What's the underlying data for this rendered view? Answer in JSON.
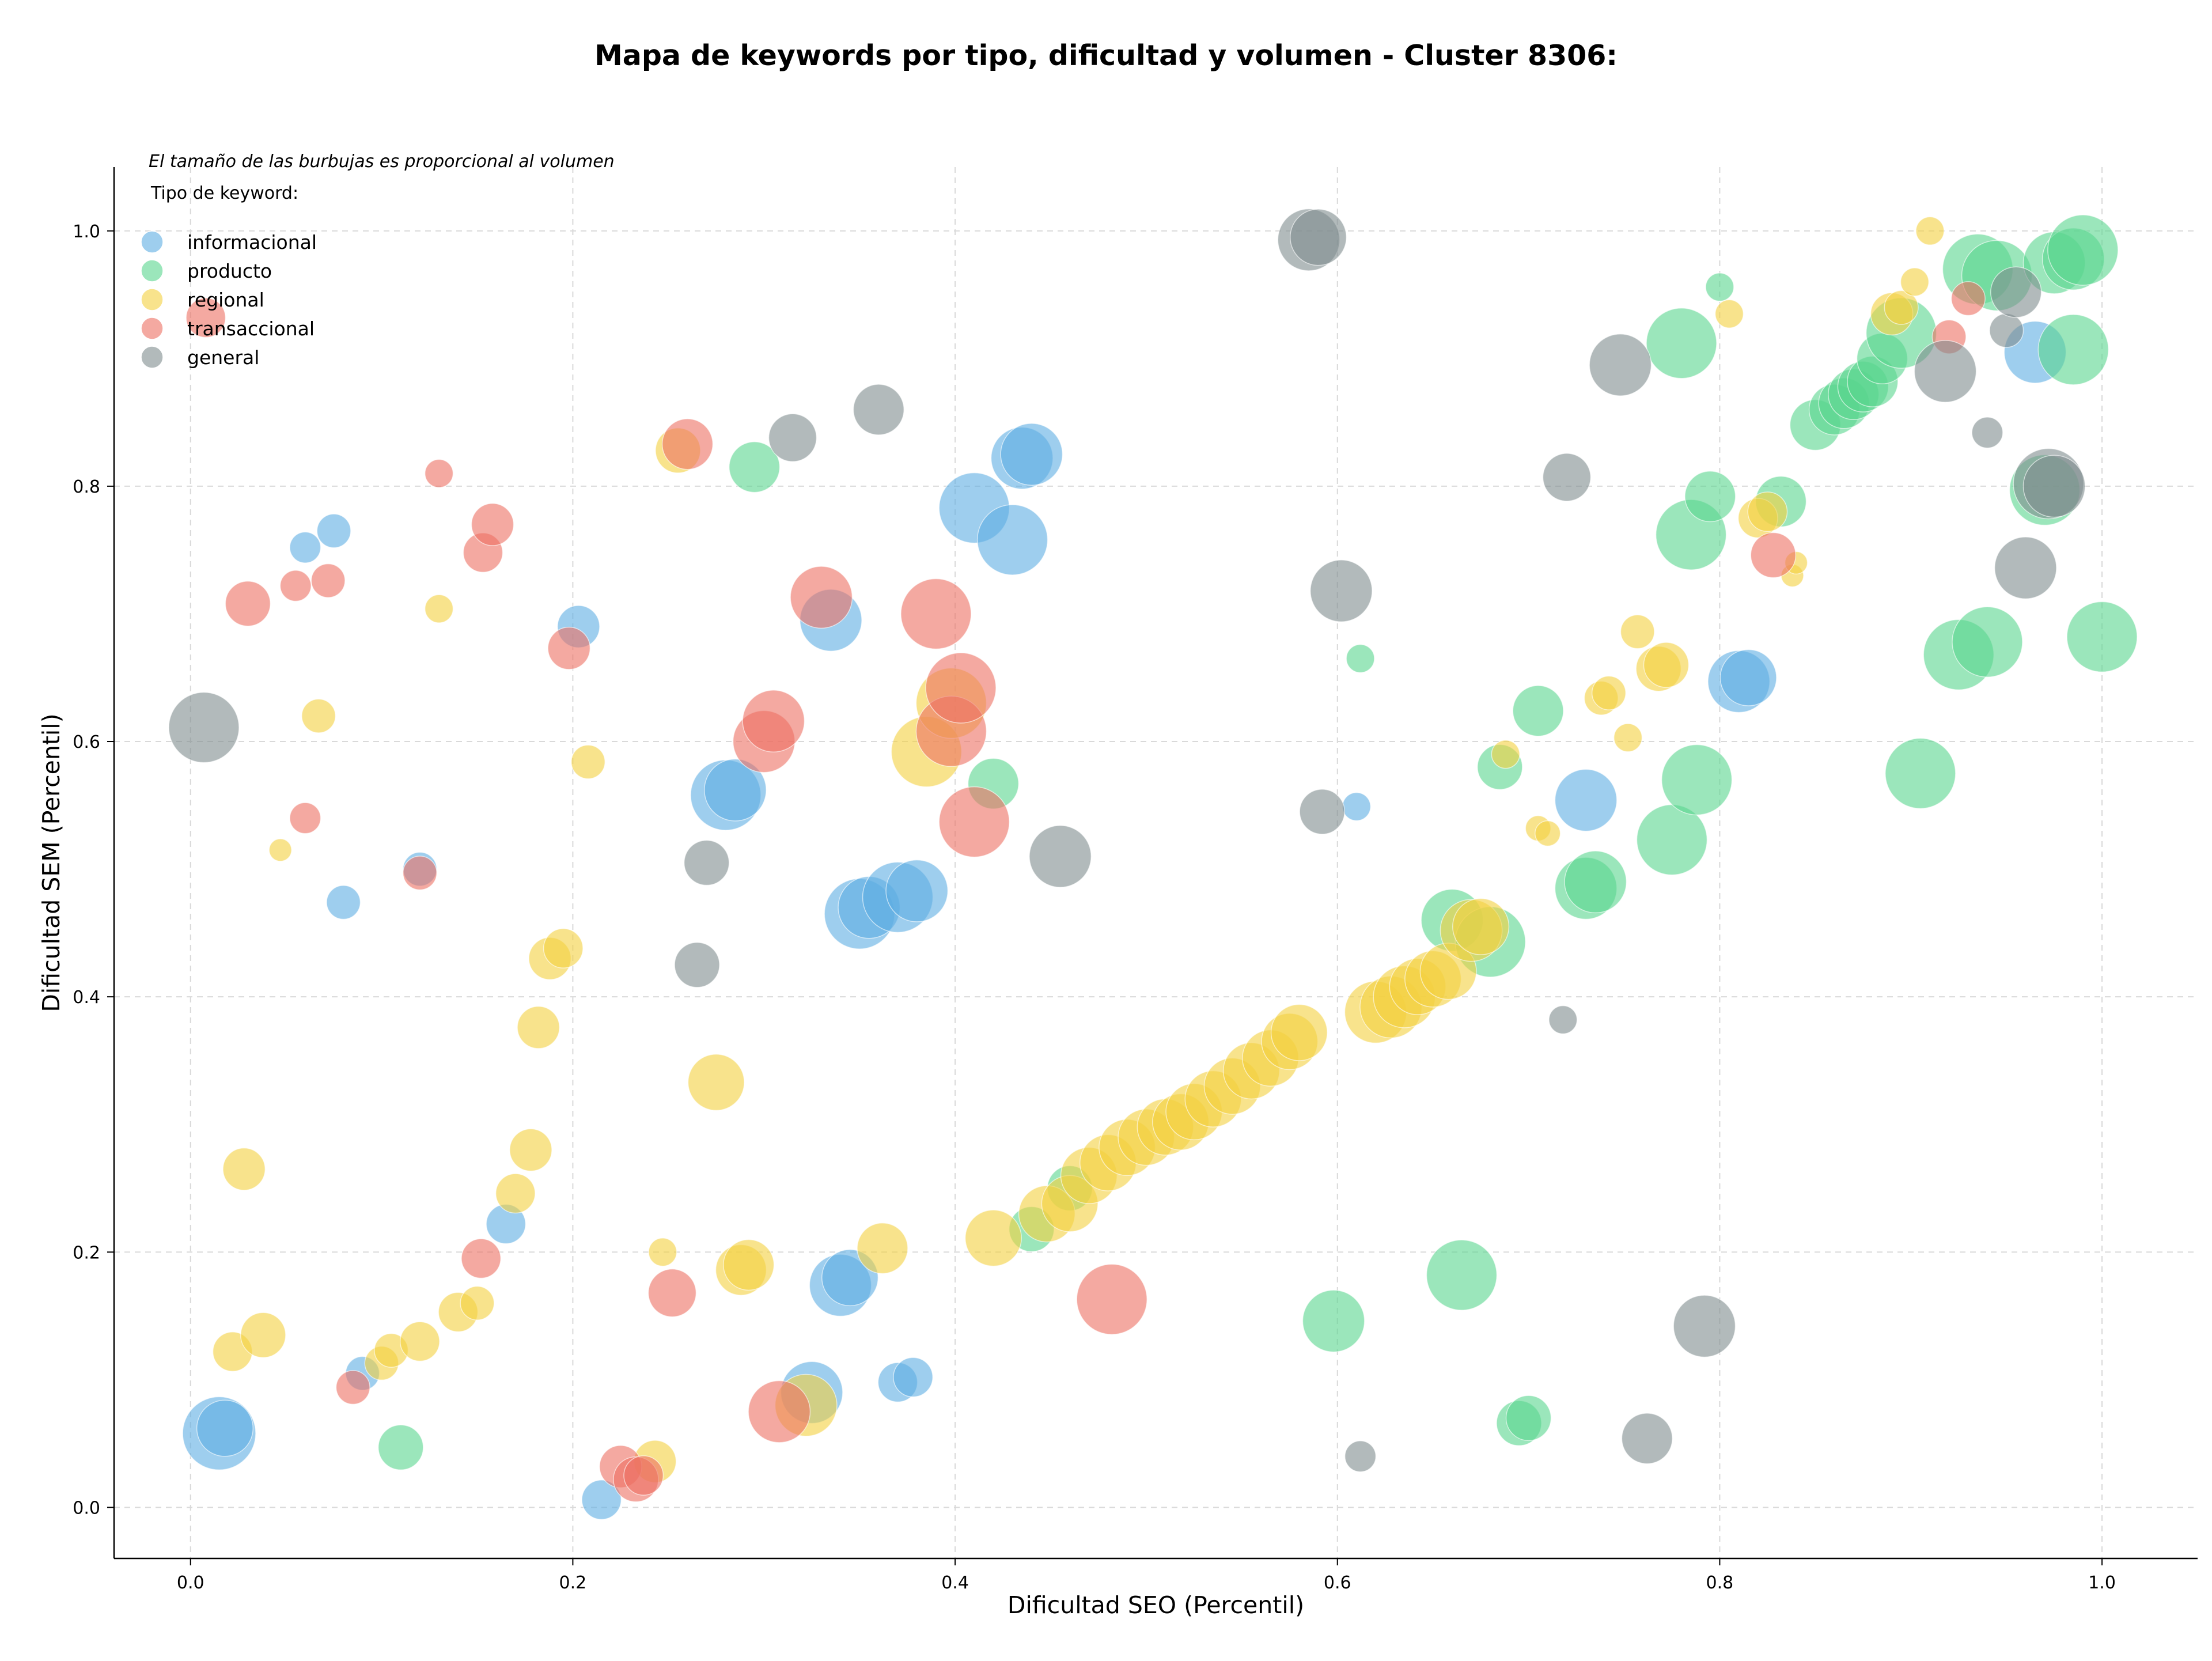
{
  "chart_data": {
    "type": "scatter",
    "title": "Mapa de keywords por tipo, dificultad y volumen - Cluster 8306:",
    "xlabel": "Dificultad SEO (Percentil)",
    "ylabel": "Dificultad SEM (Percentil)",
    "note": "El tamaño de las burbujas es proporcional al volumen",
    "legend_title": "Tipo de keyword:",
    "legend_position": "upper-left",
    "xlim": [
      -0.04,
      1.05
    ],
    "ylim": [
      -0.04,
      1.05
    ],
    "x_ticks": [
      "0.0",
      "0.2",
      "0.4",
      "0.6",
      "0.8",
      "1.0"
    ],
    "y_ticks": [
      "0.0",
      "0.2",
      "0.4",
      "0.6",
      "0.8",
      "1.0"
    ],
    "grid": true,
    "series": [
      {
        "name": "informacional",
        "color": "#5dade2",
        "points": [
          [
            0.015,
            0.058,
            26
          ],
          [
            0.018,
            0.062,
            20
          ],
          [
            0.06,
            0.752,
            11
          ],
          [
            0.075,
            0.765,
            12
          ],
          [
            0.08,
            0.474,
            12
          ],
          [
            0.12,
            0.5,
            12
          ],
          [
            0.165,
            0.222,
            14
          ],
          [
            0.09,
            0.105,
            12
          ],
          [
            0.203,
            0.69,
            15
          ],
          [
            0.215,
            0.006,
            14
          ],
          [
            0.28,
            0.558,
            25
          ],
          [
            0.285,
            0.562,
            22
          ],
          [
            0.335,
            0.695,
            22
          ],
          [
            0.34,
            0.174,
            22
          ],
          [
            0.345,
            0.18,
            20
          ],
          [
            0.325,
            0.09,
            22
          ],
          [
            0.35,
            0.465,
            25
          ],
          [
            0.355,
            0.47,
            22
          ],
          [
            0.37,
            0.478,
            25
          ],
          [
            0.38,
            0.483,
            22
          ],
          [
            0.37,
            0.098,
            14
          ],
          [
            0.378,
            0.102,
            14
          ],
          [
            0.41,
            0.783,
            25
          ],
          [
            0.43,
            0.758,
            25
          ],
          [
            0.435,
            0.822,
            22
          ],
          [
            0.44,
            0.825,
            22
          ],
          [
            0.61,
            0.549,
            10
          ],
          [
            0.73,
            0.554,
            22
          ],
          [
            0.81,
            0.647,
            22
          ],
          [
            0.815,
            0.65,
            20
          ],
          [
            0.965,
            0.905,
            22
          ]
        ]
      },
      {
        "name": "producto",
        "color": "#58d68d",
        "points": [
          [
            0.11,
            0.047,
            16
          ],
          [
            0.295,
            0.815,
            18
          ],
          [
            0.42,
            0.567,
            18
          ],
          [
            0.44,
            0.218,
            16
          ],
          [
            0.46,
            0.25,
            16
          ],
          [
            0.598,
            0.146,
            22
          ],
          [
            0.612,
            0.665,
            10
          ],
          [
            0.66,
            0.46,
            22
          ],
          [
            0.665,
            0.182,
            25
          ],
          [
            0.68,
            0.443,
            25
          ],
          [
            0.685,
            0.58,
            16
          ],
          [
            0.695,
            0.066,
            16
          ],
          [
            0.7,
            0.07,
            16
          ],
          [
            0.705,
            0.624,
            18
          ],
          [
            0.73,
            0.485,
            22
          ],
          [
            0.735,
            0.49,
            22
          ],
          [
            0.775,
            0.523,
            25
          ],
          [
            0.78,
            0.912,
            25
          ],
          [
            0.785,
            0.762,
            25
          ],
          [
            0.788,
            0.57,
            25
          ],
          [
            0.795,
            0.792,
            18
          ],
          [
            0.8,
            0.956,
            10
          ],
          [
            0.832,
            0.788,
            18
          ],
          [
            0.85,
            0.848,
            18
          ],
          [
            0.86,
            0.86,
            18
          ],
          [
            0.865,
            0.865,
            18
          ],
          [
            0.87,
            0.872,
            18
          ],
          [
            0.875,
            0.878,
            18
          ],
          [
            0.88,
            0.882,
            18
          ],
          [
            0.885,
            0.9,
            18
          ],
          [
            0.895,
            0.92,
            25
          ],
          [
            0.905,
            0.575,
            25
          ],
          [
            0.925,
            0.668,
            25
          ],
          [
            0.935,
            0.97,
            25
          ],
          [
            0.945,
            0.965,
            25
          ],
          [
            0.94,
            0.678,
            25
          ],
          [
            0.97,
            0.797,
            25
          ],
          [
            0.975,
            0.975,
            22
          ],
          [
            0.985,
            0.978,
            22
          ],
          [
            0.99,
            0.985,
            25
          ],
          [
            0.985,
            0.907,
            25
          ],
          [
            1.0,
            0.682,
            25
          ]
        ]
      },
      {
        "name": "regional",
        "color": "#f4d03f",
        "points": [
          [
            0.022,
            0.122,
            14
          ],
          [
            0.028,
            0.265,
            15
          ],
          [
            0.038,
            0.135,
            16
          ],
          [
            0.047,
            0.515,
            8
          ],
          [
            0.067,
            0.62,
            12
          ],
          [
            0.1,
            0.113,
            12
          ],
          [
            0.105,
            0.123,
            12
          ],
          [
            0.12,
            0.13,
            14
          ],
          [
            0.13,
            0.704,
            10
          ],
          [
            0.14,
            0.153,
            14
          ],
          [
            0.15,
            0.16,
            12
          ],
          [
            0.17,
            0.246,
            14
          ],
          [
            0.178,
            0.28,
            15
          ],
          [
            0.182,
            0.376,
            15
          ],
          [
            0.188,
            0.43,
            15
          ],
          [
            0.195,
            0.438,
            14
          ],
          [
            0.208,
            0.584,
            12
          ],
          [
            0.243,
            0.036,
            15
          ],
          [
            0.247,
            0.2,
            10
          ],
          [
            0.255,
            0.828,
            16
          ],
          [
            0.275,
            0.333,
            20
          ],
          [
            0.288,
            0.186,
            18
          ],
          [
            0.292,
            0.19,
            18
          ],
          [
            0.322,
            0.08,
            22
          ],
          [
            0.362,
            0.203,
            18
          ],
          [
            0.385,
            0.592,
            25
          ],
          [
            0.398,
            0.63,
            25
          ],
          [
            0.42,
            0.211,
            20
          ],
          [
            0.448,
            0.23,
            20
          ],
          [
            0.46,
            0.238,
            20
          ],
          [
            0.47,
            0.26,
            20
          ],
          [
            0.48,
            0.27,
            20
          ],
          [
            0.49,
            0.282,
            20
          ],
          [
            0.5,
            0.29,
            20
          ],
          [
            0.51,
            0.298,
            20
          ],
          [
            0.518,
            0.302,
            20
          ],
          [
            0.525,
            0.31,
            20
          ],
          [
            0.535,
            0.32,
            20
          ],
          [
            0.545,
            0.33,
            20
          ],
          [
            0.555,
            0.342,
            20
          ],
          [
            0.565,
            0.352,
            20
          ],
          [
            0.575,
            0.365,
            20
          ],
          [
            0.58,
            0.372,
            20
          ],
          [
            0.62,
            0.388,
            22
          ],
          [
            0.628,
            0.392,
            22
          ],
          [
            0.635,
            0.4,
            22
          ],
          [
            0.642,
            0.408,
            20
          ],
          [
            0.65,
            0.414,
            20
          ],
          [
            0.658,
            0.42,
            20
          ],
          [
            0.67,
            0.452,
            22
          ],
          [
            0.675,
            0.455,
            20
          ],
          [
            0.688,
            0.59,
            10
          ],
          [
            0.705,
            0.532,
            9
          ],
          [
            0.71,
            0.528,
            9
          ],
          [
            0.738,
            0.634,
            12
          ],
          [
            0.742,
            0.638,
            12
          ],
          [
            0.752,
            0.603,
            10
          ],
          [
            0.757,
            0.686,
            12
          ],
          [
            0.768,
            0.657,
            16
          ],
          [
            0.772,
            0.66,
            16
          ],
          [
            0.805,
            0.935,
            10
          ],
          [
            0.82,
            0.775,
            14
          ],
          [
            0.825,
            0.78,
            14
          ],
          [
            0.838,
            0.73,
            8
          ],
          [
            0.84,
            0.74,
            8
          ],
          [
            0.89,
            0.935,
            15
          ],
          [
            0.895,
            0.94,
            12
          ],
          [
            0.902,
            0.96,
            10
          ],
          [
            0.91,
            1.0,
            10
          ]
        ]
      },
      {
        "name": "transaccional",
        "color": "#ec7063",
        "points": [
          [
            0.008,
            0.932,
            14
          ],
          [
            0.03,
            0.708,
            16
          ],
          [
            0.055,
            0.722,
            11
          ],
          [
            0.06,
            0.54,
            11
          ],
          [
            0.072,
            0.726,
            12
          ],
          [
            0.085,
            0.094,
            12
          ],
          [
            0.12,
            0.497,
            12
          ],
          [
            0.13,
            0.81,
            10
          ],
          [
            0.152,
            0.195,
            14
          ],
          [
            0.153,
            0.748,
            14
          ],
          [
            0.158,
            0.77,
            15
          ],
          [
            0.198,
            0.673,
            15
          ],
          [
            0.225,
            0.032,
            15
          ],
          [
            0.233,
            0.022,
            16
          ],
          [
            0.237,
            0.025,
            14
          ],
          [
            0.252,
            0.168,
            17
          ],
          [
            0.26,
            0.833,
            18
          ],
          [
            0.3,
            0.6,
            22
          ],
          [
            0.305,
            0.616,
            22
          ],
          [
            0.308,
            0.075,
            22
          ],
          [
            0.33,
            0.713,
            22
          ],
          [
            0.39,
            0.7,
            25
          ],
          [
            0.398,
            0.608,
            25
          ],
          [
            0.403,
            0.642,
            25
          ],
          [
            0.41,
            0.537,
            25
          ],
          [
            0.482,
            0.163,
            25
          ],
          [
            0.828,
            0.746,
            16
          ],
          [
            0.92,
            0.917,
            12
          ],
          [
            0.93,
            0.947,
            12
          ]
        ]
      },
      {
        "name": "general",
        "color": "#7f8c8d",
        "points": [
          [
            0.007,
            0.611,
            25
          ],
          [
            0.265,
            0.425,
            16
          ],
          [
            0.27,
            0.505,
            16
          ],
          [
            0.315,
            0.838,
            17
          ],
          [
            0.36,
            0.86,
            18
          ],
          [
            0.455,
            0.51,
            22
          ],
          [
            0.585,
            0.993,
            22
          ],
          [
            0.59,
            0.995,
            20
          ],
          [
            0.592,
            0.545,
            16
          ],
          [
            0.602,
            0.718,
            22
          ],
          [
            0.612,
            0.04,
            11
          ],
          [
            0.718,
            0.382,
            10
          ],
          [
            0.72,
            0.807,
            17
          ],
          [
            0.748,
            0.895,
            22
          ],
          [
            0.762,
            0.054,
            18
          ],
          [
            0.792,
            0.142,
            22
          ],
          [
            0.918,
            0.89,
            22
          ],
          [
            0.94,
            0.842,
            11
          ],
          [
            0.95,
            0.922,
            12
          ],
          [
            0.955,
            0.952,
            18
          ],
          [
            0.96,
            0.736,
            22
          ],
          [
            0.972,
            0.802,
            25
          ],
          [
            0.975,
            0.8,
            22
          ]
        ]
      }
    ]
  }
}
